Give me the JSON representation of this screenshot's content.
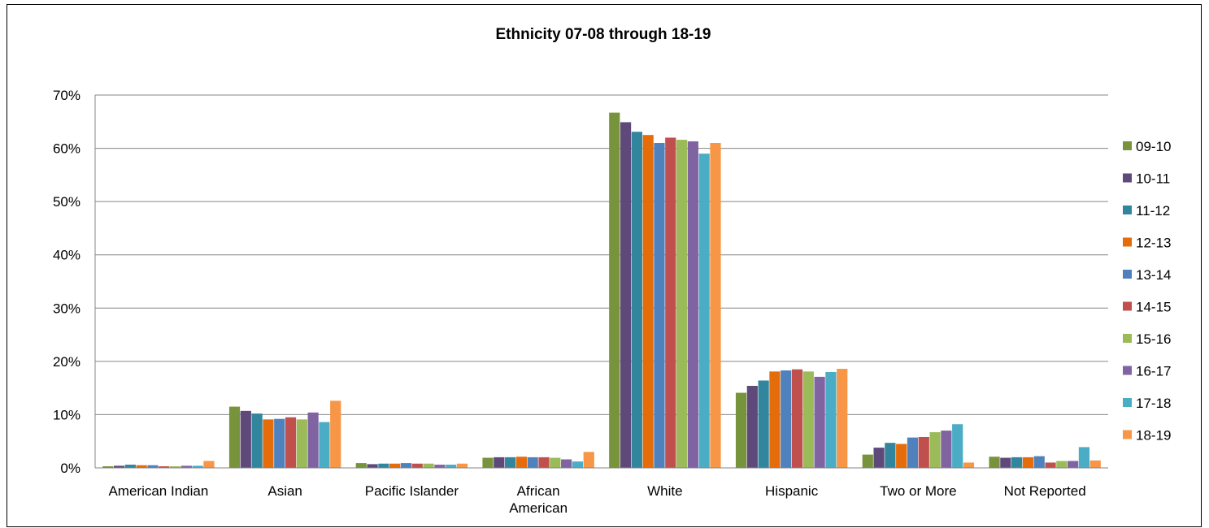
{
  "chart_data": {
    "type": "bar",
    "title": "Ethnicity 07-08 through 18-19",
    "xlabel": "",
    "ylabel": "",
    "ylim": [
      0,
      70
    ],
    "y_ticks": [
      "0%",
      "10%",
      "20%",
      "30%",
      "40%",
      "50%",
      "60%",
      "70%"
    ],
    "grid": true,
    "legend_position": "right",
    "categories": [
      "American Indian",
      "Asian",
      "Pacific Islander",
      "African American",
      "White",
      "Hispanic",
      "Two or More",
      "Not Reported"
    ],
    "series": [
      {
        "name": "09-10",
        "color": "#77933c",
        "values": [
          0.3,
          11.5,
          0.9,
          1.9,
          66.7,
          14.1,
          2.5,
          2.1
        ]
      },
      {
        "name": "10-11",
        "color": "#5f497a",
        "values": [
          0.4,
          10.7,
          0.7,
          2.0,
          64.9,
          15.4,
          3.8,
          1.9
        ]
      },
      {
        "name": "11-12",
        "color": "#31859c",
        "values": [
          0.6,
          10.2,
          0.8,
          2.0,
          63.1,
          16.4,
          4.7,
          2.0
        ]
      },
      {
        "name": "12-13",
        "color": "#e46c0a",
        "values": [
          0.5,
          9.1,
          0.8,
          2.1,
          62.5,
          18.1,
          4.5,
          2.0
        ]
      },
      {
        "name": "13-14",
        "color": "#4f81bd",
        "values": [
          0.5,
          9.2,
          0.9,
          2.0,
          61.0,
          18.3,
          5.7,
          2.2
        ]
      },
      {
        "name": "14-15",
        "color": "#c0504d",
        "values": [
          0.3,
          9.5,
          0.8,
          2.0,
          62.0,
          18.5,
          5.8,
          1.0
        ]
      },
      {
        "name": "15-16",
        "color": "#9bbb59",
        "values": [
          0.3,
          9.1,
          0.8,
          1.9,
          61.6,
          18.1,
          6.7,
          1.3
        ]
      },
      {
        "name": "16-17",
        "color": "#8064a2",
        "values": [
          0.4,
          10.4,
          0.6,
          1.6,
          61.3,
          17.1,
          7.0,
          1.3
        ]
      },
      {
        "name": "17-18",
        "color": "#4bacc6",
        "values": [
          0.4,
          8.6,
          0.6,
          1.2,
          59.0,
          18.0,
          8.2,
          3.9
        ]
      },
      {
        "name": "18-19",
        "color": "#f79646",
        "values": [
          1.3,
          12.6,
          0.8,
          3.0,
          61.0,
          18.6,
          1.0,
          1.4
        ]
      }
    ]
  }
}
